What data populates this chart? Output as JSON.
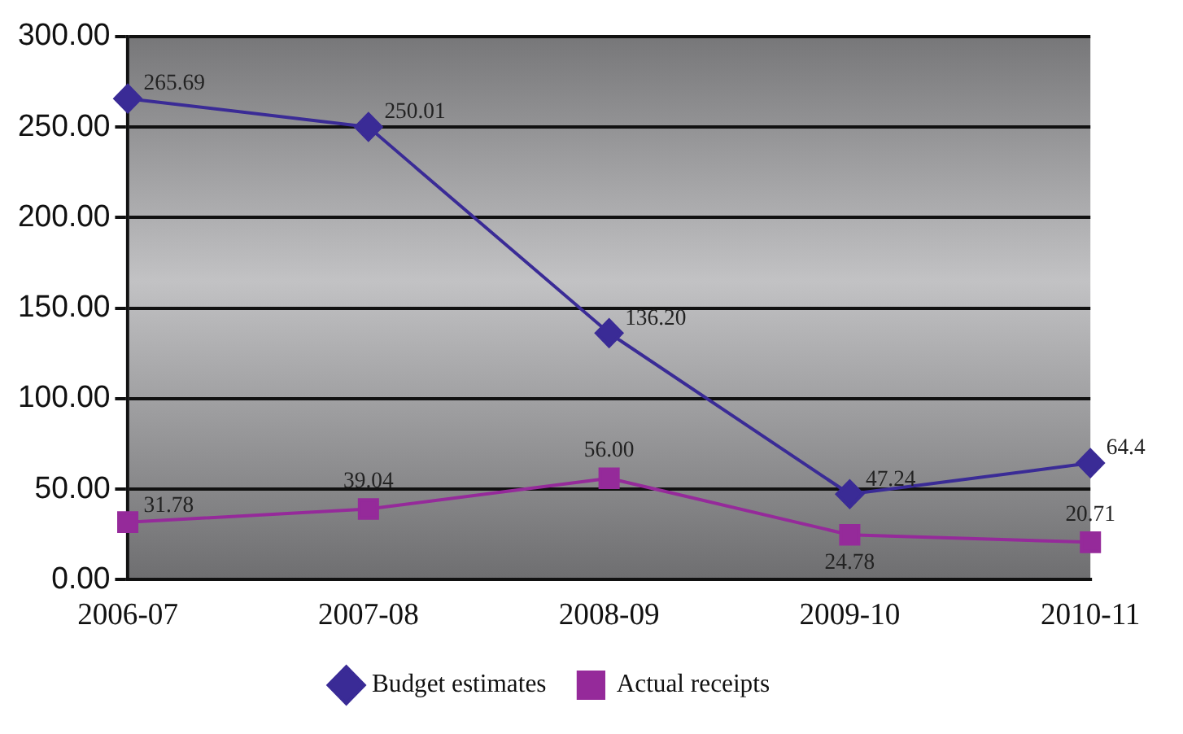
{
  "chart_data": {
    "type": "line",
    "categories": [
      "2006-07",
      "2007-08",
      "2008-09",
      "2009-10",
      "2010-11"
    ],
    "series": [
      {
        "name": "Budget estimates",
        "color": "#3a2b96",
        "marker": "diamond",
        "values": [
          265.69,
          250.01,
          136.2,
          47.24,
          64.4
        ],
        "value_labels": [
          "265.69",
          "250.01",
          "136.20",
          "47.24",
          "64.4"
        ]
      },
      {
        "name": "Actual receipts",
        "color": "#952a9a",
        "marker": "square",
        "values": [
          31.78,
          39.04,
          56.0,
          24.78,
          20.71
        ],
        "value_labels": [
          "31.78",
          "39.04",
          "56.00",
          "24.78",
          "20.71"
        ]
      }
    ],
    "ylim": [
      0,
      300
    ],
    "yticks": [
      {
        "value": 0,
        "label": "0.00"
      },
      {
        "value": 50,
        "label": "50.00"
      },
      {
        "value": 100,
        "label": "100.00"
      },
      {
        "value": 150,
        "label": "150.00"
      },
      {
        "value": 200,
        "label": "200.00"
      },
      {
        "value": 250,
        "label": "250.00"
      },
      {
        "value": 300,
        "label": "300.00"
      }
    ],
    "grid": "y",
    "legend": "bottom",
    "line_style": "solid"
  }
}
